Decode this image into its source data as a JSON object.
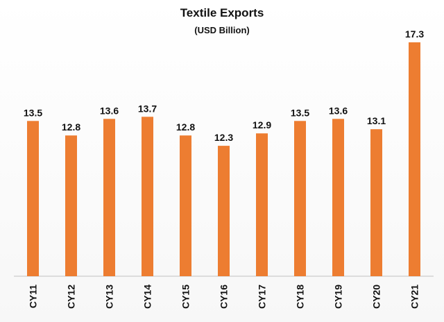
{
  "chart_data": {
    "type": "bar",
    "title": "Textile Exports",
    "subtitle": "(USD Billion)",
    "categories": [
      "CY11",
      "CY12",
      "CY13",
      "CY14",
      "CY15",
      "CY16",
      "CY17",
      "CY18",
      "CY19",
      "CY20",
      "CY21"
    ],
    "values": [
      13.5,
      12.8,
      13.6,
      13.7,
      12.8,
      12.3,
      12.9,
      13.5,
      13.6,
      13.1,
      17.3
    ],
    "ylim": [
      6.0,
      17.5
    ],
    "grid": false,
    "legend": "none",
    "xlabel": "",
    "ylabel": "",
    "bar_color": "#ED7D31",
    "axis_color": "#BFBFBF"
  }
}
